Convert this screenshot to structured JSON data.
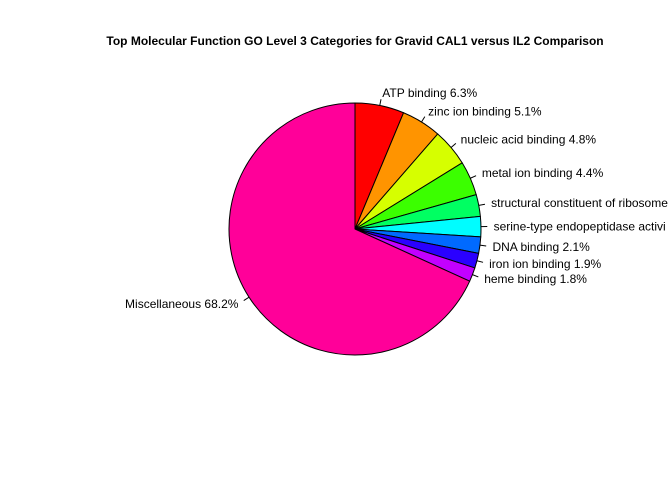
{
  "chart_data": {
    "type": "pie",
    "title": "Top Molecular Function GO Level 3 Categories for Gravid CAL1 versus IL2 Comparison",
    "start_angle_deg": 90,
    "direction": "clockwise",
    "slices": [
      {
        "label": "ATP binding 6.3%",
        "value": 6.3,
        "color": "#ff0000"
      },
      {
        "label": "zinc ion binding 5.1%",
        "value": 5.1,
        "color": "#ff9400"
      },
      {
        "label": "nucleic acid binding 4.8%",
        "value": 4.8,
        "color": "#d6ff00"
      },
      {
        "label": "metal ion binding 4.4%",
        "value": 4.4,
        "color": "#3bff00"
      },
      {
        "label": "structural constituent of ribosome",
        "value": 2.8,
        "color": "#00ff62"
      },
      {
        "label": "serine-type endopeptidase activi",
        "value": 2.6,
        "color": "#00fdff"
      },
      {
        "label": "DNA binding 2.1%",
        "value": 2.1,
        "color": "#006aff"
      },
      {
        "label": "iron ion binding 1.9%",
        "value": 1.9,
        "color": "#2a00ff"
      },
      {
        "label": "heme binding 1.8%",
        "value": 1.8,
        "color": "#c300ff"
      },
      {
        "label": "Miscellaneous 68.2%",
        "value": 68.2,
        "color": "#ff0099"
      }
    ]
  }
}
